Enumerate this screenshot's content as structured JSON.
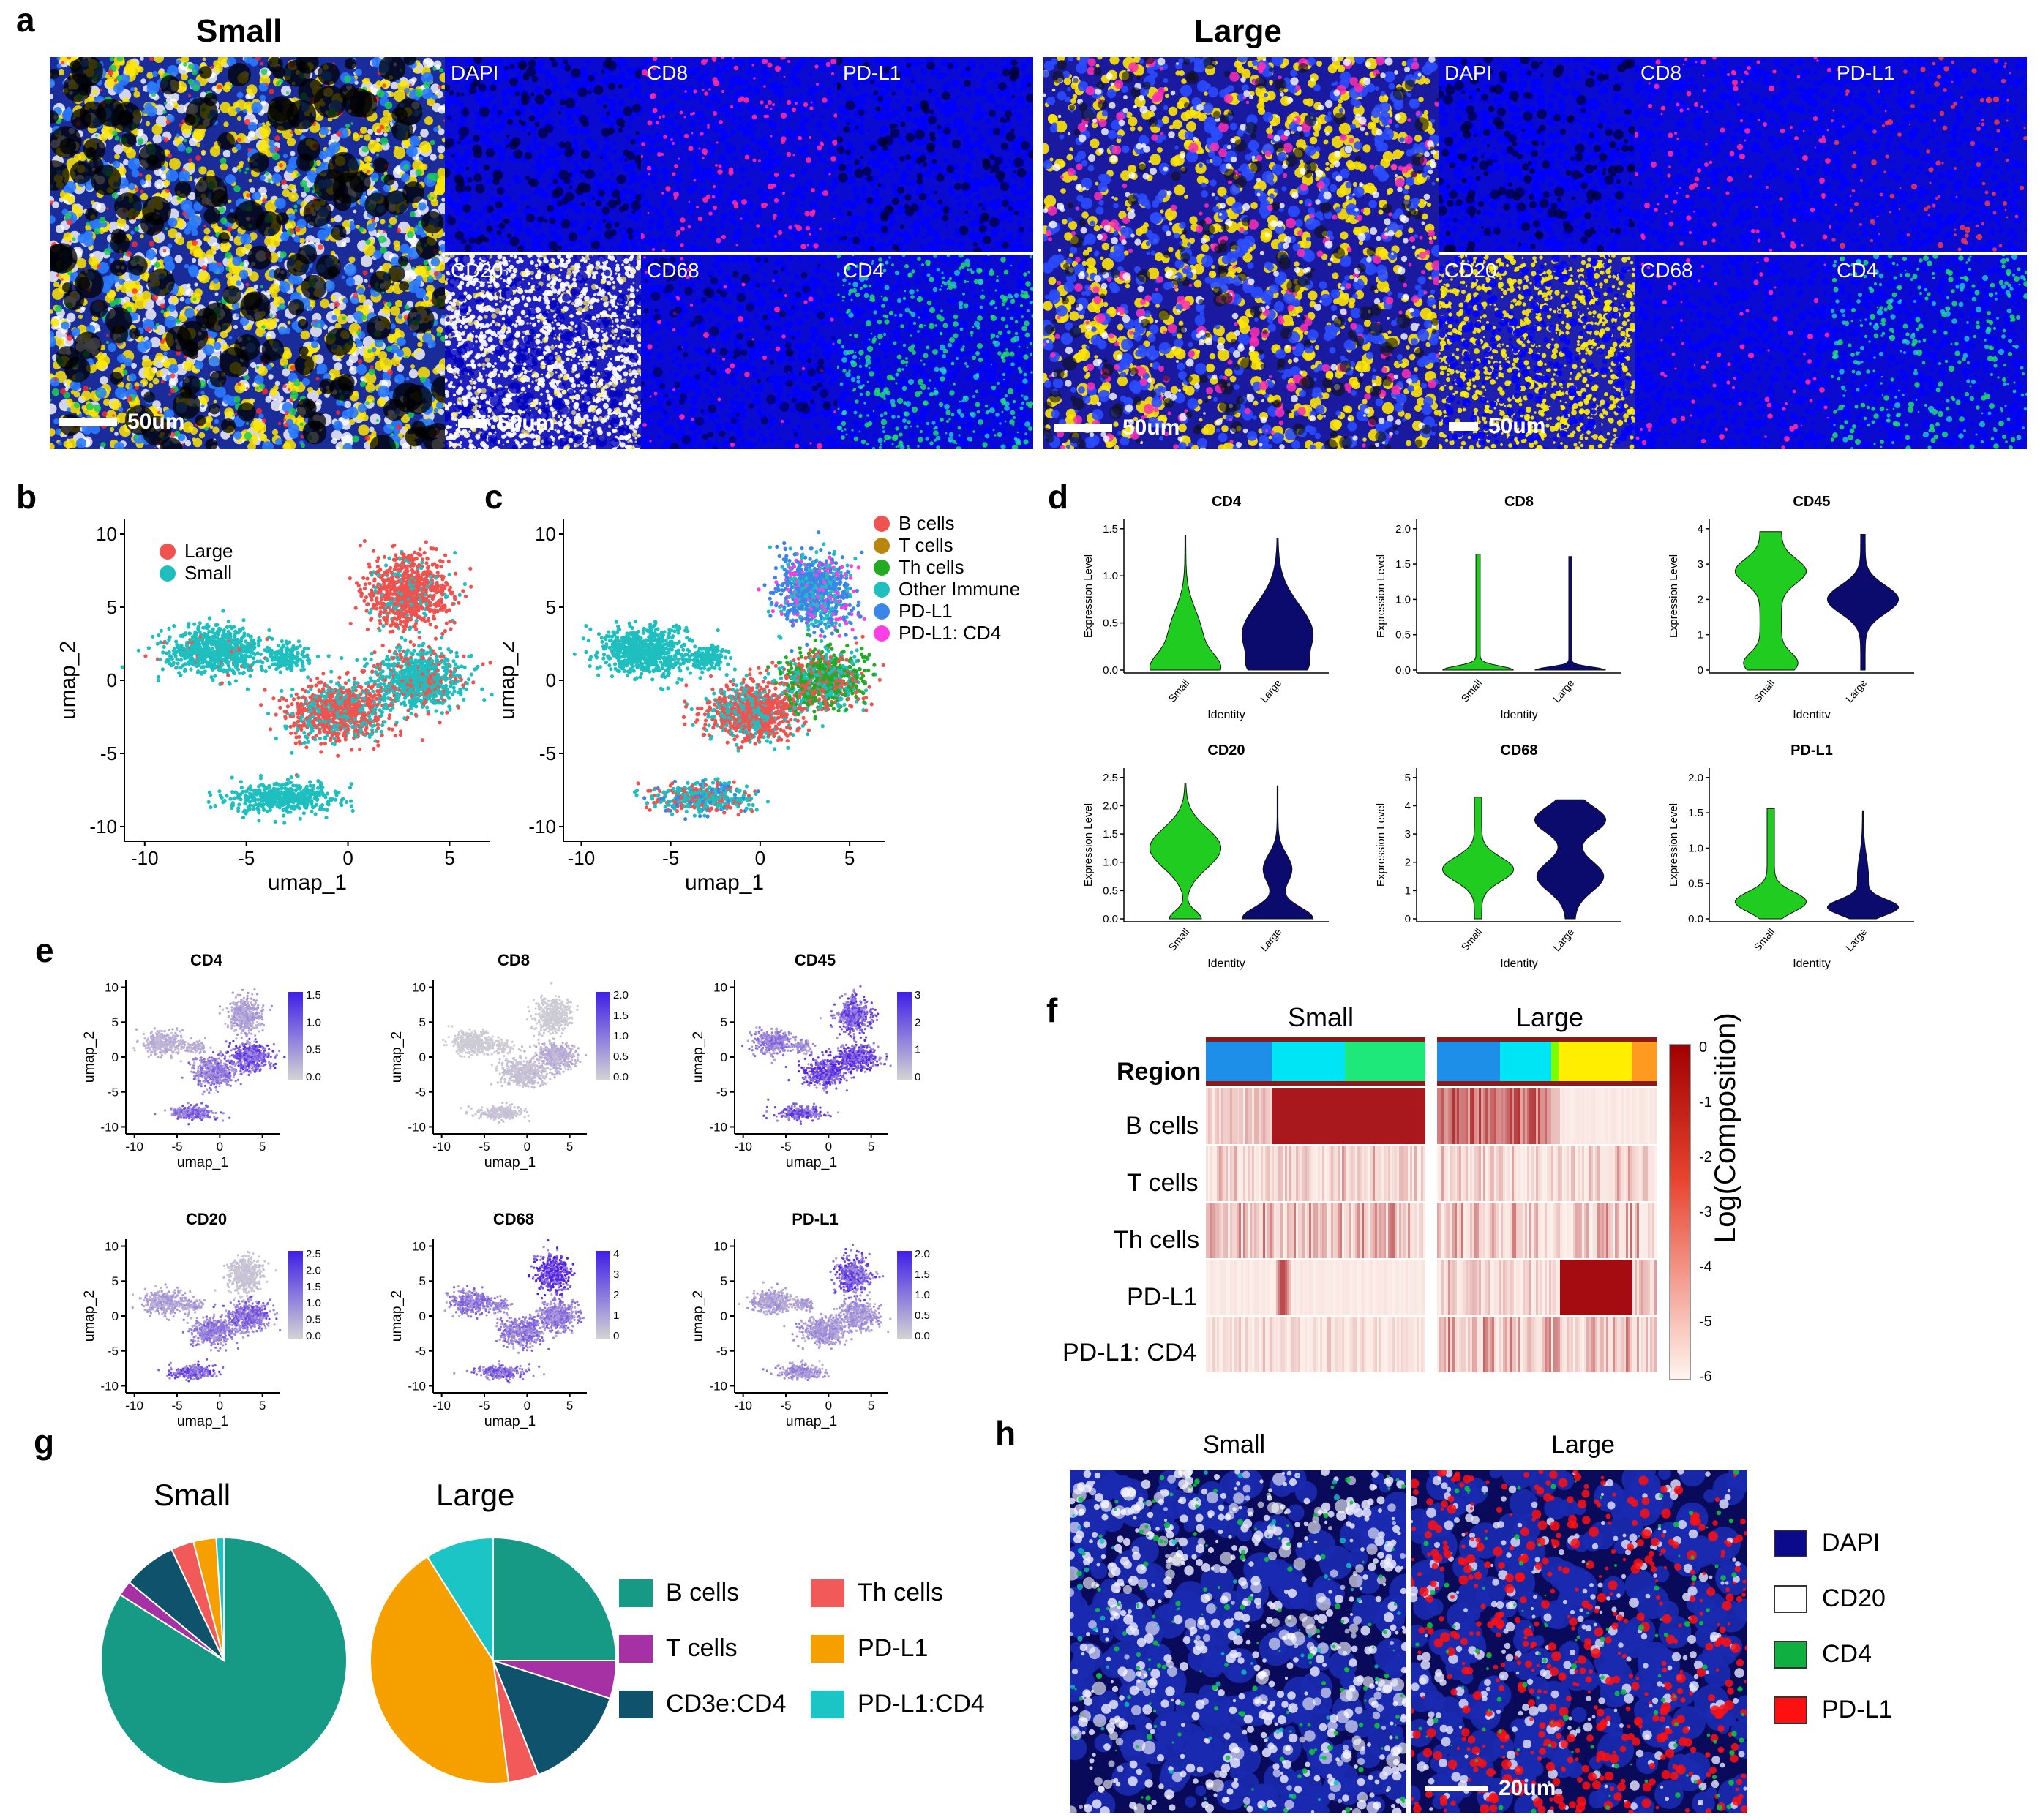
{
  "panel_labels": {
    "a": "a",
    "b": "b",
    "c": "c",
    "d": "d",
    "e": "e",
    "f": "f",
    "g": "g",
    "h": "h"
  },
  "panel_a": {
    "small_title": "Small",
    "large_title": "Large",
    "channels": [
      "DAPI",
      "CD8",
      "PD-L1",
      "CD20",
      "CD68",
      "CD4"
    ],
    "scale_label": "50um"
  },
  "panel_b": {
    "legend": [
      {
        "name": "Large",
        "color": "#ef5350"
      },
      {
        "name": "Small",
        "color": "#1fbfbf"
      }
    ],
    "xlabel": "umap_1",
    "ylabel": "umap_2",
    "xticks": [
      "-10",
      "-5",
      "0",
      "5"
    ],
    "yticks": [
      "10",
      "5",
      "0",
      "-5",
      "-10"
    ]
  },
  "panel_c": {
    "legend": [
      {
        "name": "B cells",
        "color": "#ef5350"
      },
      {
        "name": "T cells",
        "color": "#b8860b"
      },
      {
        "name": "Th cells",
        "color": "#22aa22"
      },
      {
        "name": "Other Immune",
        "color": "#1fbfbf"
      },
      {
        "name": "PD-L1",
        "color": "#3a86e8"
      },
      {
        "name": "PD-L1: CD4",
        "color": "#ff3fe6"
      }
    ],
    "xlabel": "umap_1",
    "ylabel": "umap_2",
    "xticks": [
      "-10",
      "-5",
      "0",
      "5"
    ],
    "yticks": [
      "10",
      "5",
      "0",
      "-5",
      "-10"
    ]
  },
  "panel_d": {
    "ylabel": "Expression Level",
    "xlabel": "Identity",
    "groups": [
      "Small",
      "Large"
    ],
    "colors": {
      "Small": "#1fcc1f",
      "Large": "#0b0b6e"
    },
    "plots": [
      {
        "title": "CD4",
        "yticks": [
          "0.0",
          "0.5",
          "1.0",
          "1.5"
        ]
      },
      {
        "title": "CD8",
        "yticks": [
          "0.0",
          "0.5",
          "1.0",
          "1.5",
          "2.0"
        ]
      },
      {
        "title": "CD45",
        "yticks": [
          "0",
          "1",
          "2",
          "3",
          "4"
        ]
      },
      {
        "title": "CD20",
        "yticks": [
          "0.0",
          "0.5",
          "1.0",
          "1.5",
          "2.0",
          "2.5"
        ]
      },
      {
        "title": "CD68",
        "yticks": [
          "0",
          "1",
          "2",
          "3",
          "4",
          "5"
        ]
      },
      {
        "title": "PD-L1",
        "yticks": [
          "0.0",
          "0.5",
          "1.0",
          "1.5",
          "2.0"
        ]
      }
    ],
    "xlabel_alt": "Identitv"
  },
  "panel_e": {
    "xlabel": "umap_1",
    "ylabel": "umap_2",
    "xticks": [
      "-10",
      "-5",
      "0",
      "5"
    ],
    "yticks": [
      "10",
      "5",
      "0",
      "-5",
      "-10"
    ],
    "plots": [
      {
        "title": "CD4",
        "scale": [
          "1.5",
          "1.0",
          "0.5",
          "0.0"
        ]
      },
      {
        "title": "CD8",
        "scale": [
          "2.0",
          "1.5",
          "1.0",
          "0.5",
          "0.0"
        ]
      },
      {
        "title": "CD45",
        "scale": [
          "3",
          "2",
          "1",
          "0"
        ]
      },
      {
        "title": "CD20",
        "scale": [
          "2.5",
          "2.0",
          "1.5",
          "1.0",
          "0.5",
          "0.0"
        ]
      },
      {
        "title": "CD68",
        "scale": [
          "4",
          "3",
          "2",
          "1",
          "0"
        ]
      },
      {
        "title": "PD-L1",
        "scale": [
          "2.0",
          "1.5",
          "1.0",
          "0.5",
          "0.0"
        ]
      }
    ]
  },
  "panel_f": {
    "small_title": "Small",
    "large_title": "Large",
    "row_labels": [
      "Region",
      "B cells",
      "T cells",
      "Th cells",
      "PD-L1",
      "PD-L1: CD4"
    ],
    "colorbar_label": "Log(Composition)",
    "colorbar_ticks": [
      "0",
      "-1",
      "-2",
      "-3",
      "-4",
      "-5",
      "-6"
    ]
  },
  "panel_g": {
    "small_title": "Small",
    "large_title": "Large",
    "legend": [
      {
        "name": "B cells",
        "color": "#169a86"
      },
      {
        "name": "Th cells",
        "color": "#f25a5a"
      },
      {
        "name": "T cells",
        "color": "#a531a5"
      },
      {
        "name": "PD-L1",
        "color": "#f6a000"
      },
      {
        "name": "CD3e:CD4",
        "color": "#0e536b"
      },
      {
        "name": "PD-L1:CD4",
        "color": "#1bc5c5"
      }
    ],
    "chart_data": [
      {
        "type": "pie",
        "title": "Small",
        "categories": [
          "B cells",
          "T cells",
          "CD3e:CD4",
          "Th cells",
          "PD-L1",
          "PD-L1:CD4"
        ],
        "values": [
          84,
          2,
          7,
          3,
          3,
          1
        ]
      },
      {
        "type": "pie",
        "title": "Large",
        "categories": [
          "B cells",
          "T cells",
          "CD3e:CD4",
          "Th cells",
          "PD-L1",
          "PD-L1:CD4"
        ],
        "values": [
          25,
          5,
          14,
          4,
          43,
          9
        ]
      }
    ]
  },
  "panel_h": {
    "small_title": "Small",
    "large_title": "Large",
    "legend": [
      {
        "name": "DAPI",
        "color": "#0a0a8a"
      },
      {
        "name": "CD20",
        "color": "#ffffff"
      },
      {
        "name": "CD4",
        "color": "#10b040"
      },
      {
        "name": "PD-L1",
        "color": "#ff1010"
      }
    ],
    "scale_label": "20um"
  }
}
